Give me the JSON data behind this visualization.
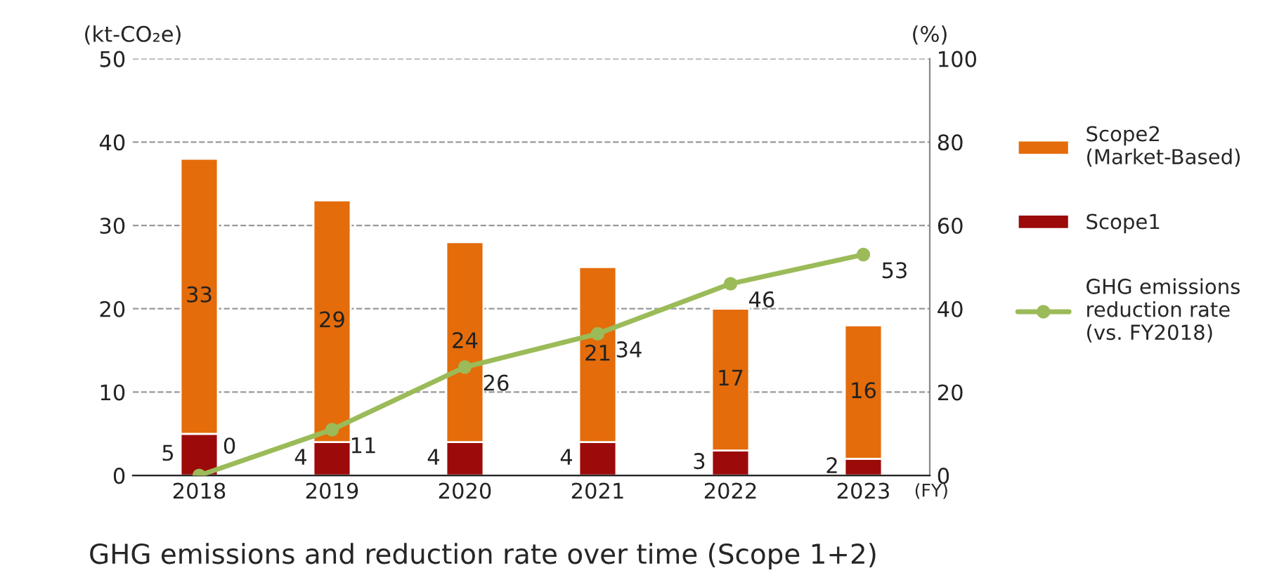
{
  "chart_data": {
    "type": "bar",
    "title": "GHG emissions and reduction rate over time (Scope 1+2)",
    "ylabel": "(kt-CO₂e)",
    "y2label": "(%)",
    "xlabel": "(FY)",
    "categories": [
      "2018",
      "2019",
      "2020",
      "2021",
      "2022",
      "2023"
    ],
    "stacked": true,
    "data_labels": true,
    "grid": "y",
    "legend": "right",
    "marker": "circle",
    "line_style": "solid",
    "ylim": [
      0,
      50
    ],
    "yticks": [
      0,
      10,
      20,
      30,
      40,
      50
    ],
    "y2lim": [
      0,
      100
    ],
    "y2ticks": [
      0,
      20,
      40,
      60,
      80,
      100
    ],
    "series": [
      {
        "name": "Scope1",
        "color": "#9c0a0a",
        "values": [
          5,
          4,
          4,
          4,
          3,
          2
        ]
      },
      {
        "name": "Scope2\n(Market-Based)",
        "color": "#e46c0a",
        "values": [
          33,
          29,
          24,
          21,
          17,
          16
        ]
      },
      {
        "name": "GHG emissions\nreduction rate\n(vs. FY2018)",
        "type": "line",
        "axis": "y2",
        "color": "#9bbb59",
        "values": [
          0,
          11,
          26,
          34,
          46,
          53
        ]
      }
    ]
  }
}
